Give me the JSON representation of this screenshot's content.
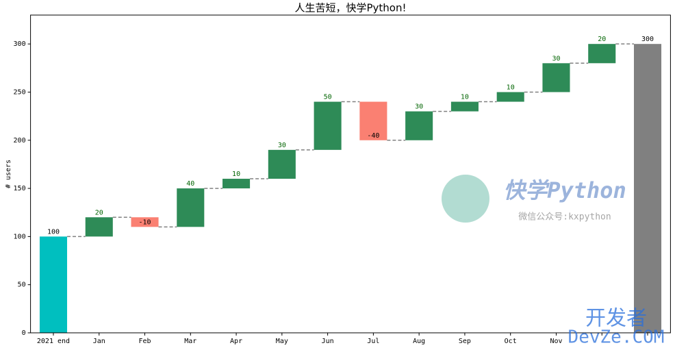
{
  "chart_data": {
    "type": "waterfall",
    "title": "人生苦短，快学Python!",
    "y_label": "# users",
    "categories": [
      "2021 end",
      "Jan",
      "Feb",
      "Mar",
      "Apr",
      "May",
      "Jun",
      "Jul",
      "Aug",
      "Sep",
      "Oct",
      "Nov",
      null,
      null
    ],
    "values": [
      100,
      20,
      -10,
      40,
      10,
      30,
      50,
      -40,
      30,
      10,
      10,
      30,
      20,
      300
    ],
    "colors": [
      "#00bfbf",
      "#2e8b57",
      "#fa8072",
      "#2e8b57",
      "#2e8b57",
      "#2e8b57",
      "#2e8b57",
      "#fa8072",
      "#2e8b57",
      "#2e8b57",
      "#2e8b57",
      "#2e8b57",
      "#2e8b57",
      "#808080"
    ],
    "label_colors": [
      "#000000",
      "#006400",
      "#000000",
      "#006400",
      "#006400",
      "#006400",
      "#006400",
      "#000000",
      "#006400",
      "#006400",
      "#006400",
      "#006400",
      "#006400",
      "#000000"
    ],
    "connector_color": "#808080",
    "ylim": [
      0,
      330
    ],
    "yticks": [
      0,
      50,
      100,
      150,
      200,
      250,
      300
    ],
    "watermarks": [
      "快学Python",
      "微信公众号:kxpython",
      "开发者",
      "DevZe.COM"
    ]
  }
}
